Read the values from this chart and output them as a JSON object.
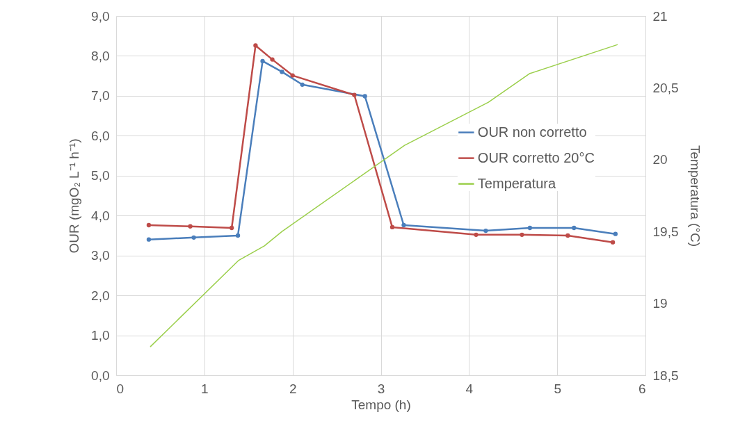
{
  "chart_data": {
    "type": "line",
    "xlabel": "Tempo (h)",
    "ylabel": "OUR (mgO₂ L⁻¹ h⁻¹)",
    "y2label": "Temperatura (°C)",
    "xlim": [
      0,
      6
    ],
    "xticks": [
      0,
      1,
      2,
      3,
      4,
      5,
      6
    ],
    "ylim": [
      0,
      9
    ],
    "yticks": [
      {
        "value": 0,
        "label": "0,0"
      },
      {
        "value": 1,
        "label": "1,0"
      },
      {
        "value": 2,
        "label": "2,0"
      },
      {
        "value": 3,
        "label": "3,0"
      },
      {
        "value": 4,
        "label": "4,0"
      },
      {
        "value": 5,
        "label": "5,0"
      },
      {
        "value": 6,
        "label": "6,0"
      },
      {
        "value": 7,
        "label": "7,0"
      },
      {
        "value": 8,
        "label": "8,0"
      },
      {
        "value": 9,
        "label": "9,0"
      }
    ],
    "y2lim": [
      18.5,
      21
    ],
    "y2ticks": [
      {
        "value": 18.5,
        "label": "18,5"
      },
      19,
      {
        "value": 19.5,
        "label": "19,5"
      },
      20,
      {
        "value": 20.5,
        "label": "20,5"
      },
      21
    ],
    "grid": true,
    "legend": "right",
    "marker": "circle",
    "series": [
      {
        "name": "OUR non corretto",
        "color": "#4a7ebb",
        "x": [
          0.37,
          0.88,
          1.38,
          1.66,
          1.88,
          2.11,
          2.82,
          3.26,
          4.19,
          4.69,
          5.19,
          5.66
        ],
        "values": [
          3.4,
          3.45,
          3.5,
          7.87,
          7.6,
          7.28,
          6.99,
          3.76,
          3.62,
          3.69,
          3.69,
          3.54
        ]
      },
      {
        "name": "OUR corretto 20°C",
        "color": "#be4b48",
        "x": [
          0.37,
          0.84,
          1.31,
          1.58,
          1.77,
          2.0,
          2.7,
          3.13,
          4.08,
          4.6,
          5.12,
          5.63
        ],
        "values": [
          3.76,
          3.73,
          3.69,
          8.26,
          7.91,
          7.51,
          7.02,
          3.71,
          3.52,
          3.52,
          3.5,
          3.33
        ]
      },
      {
        "name": "Temperatura",
        "color": "#9bcf4b",
        "axis": "y2",
        "marker": "none",
        "x": [
          0.39,
          1.39,
          1.68,
          1.88,
          3.27,
          4.22,
          4.69,
          5.68
        ],
        "values": [
          18.7,
          19.3,
          19.4,
          19.5,
          20.1,
          20.4,
          20.6,
          20.8
        ]
      }
    ]
  }
}
